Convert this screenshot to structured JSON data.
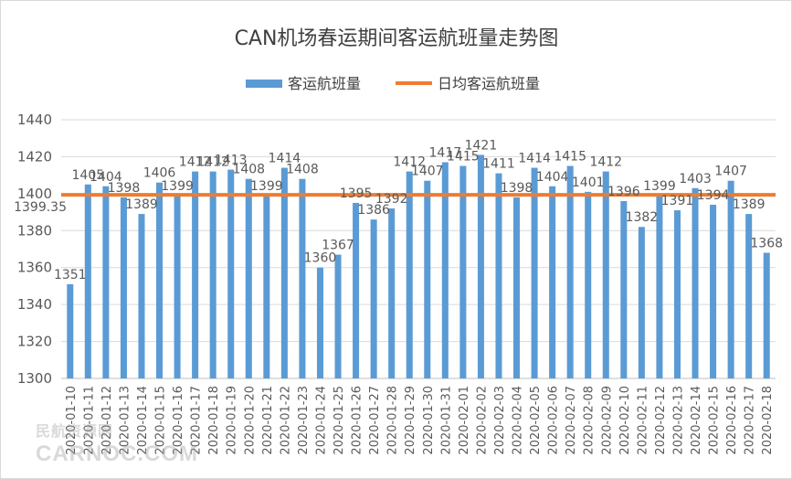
{
  "chart_data": {
    "type": "bar",
    "title": "CAN机场春运期间客运航班量走势图",
    "categories": [
      "2020-01-10",
      "2020-01-11",
      "2020-01-12",
      "2020-01-13",
      "2020-01-14",
      "2020-01-15",
      "2020-01-16",
      "2020-01-17",
      "2020-01-18",
      "2020-01-19",
      "2020-01-20",
      "2020-01-21",
      "2020-01-22",
      "2020-01-23",
      "2020-01-24",
      "2020-01-25",
      "2020-01-26",
      "2020-01-27",
      "2020-01-28",
      "2020-01-29",
      "2020-01-30",
      "2020-01-31",
      "2020-02-01",
      "2020-02-02",
      "2020-02-03",
      "2020-02-04",
      "2020-02-05",
      "2020-02-06",
      "2020-02-07",
      "2020-02-08",
      "2020-02-09",
      "2020-02-10",
      "2020-02-11",
      "2020-02-12",
      "2020-02-13",
      "2020-02-14",
      "2020-02-15",
      "2020-02-16",
      "2020-02-17",
      "2020-02-18"
    ],
    "series": [
      {
        "name": "客运航班量",
        "color": "#5b9bd5",
        "values": [
          1351,
          1405,
          1404,
          1398,
          1389,
          1406,
          1399,
          1412,
          1412,
          1413,
          1408,
          1399,
          1414,
          1408,
          1360,
          1367,
          1395,
          1386,
          1392,
          1412,
          1407,
          1417,
          1415,
          1421,
          1411,
          1398,
          1414,
          1404,
          1415,
          1401,
          1412,
          1396,
          1382,
          1399,
          1391,
          1403,
          1394,
          1407,
          1389,
          1368
        ]
      },
      {
        "name": "日均客运航班量",
        "color": "#ed7d31",
        "type": "line",
        "value": 1399.35,
        "label": "1399.35"
      }
    ],
    "ylim": [
      1300,
      1440
    ],
    "yticks": [
      "1300",
      "1320",
      "1340",
      "1360",
      "1380",
      "1400",
      "1420",
      "1440"
    ],
    "grid": true,
    "legend": "top"
  },
  "watermark": {
    "line1": "民航资源网",
    "line2": "CARNOC.COM"
  }
}
